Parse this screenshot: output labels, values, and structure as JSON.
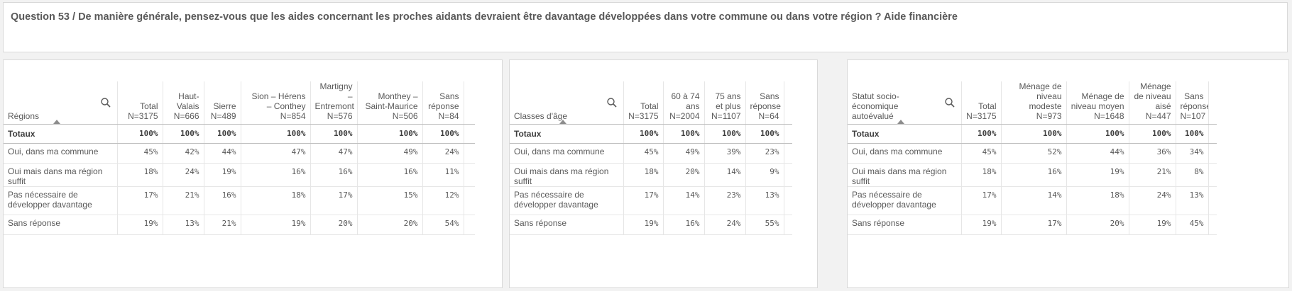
{
  "title": "Question 53 / De manière générale, pensez-vous que les aides concernant les proches aidants devraient être davantage développées dans votre commune ou dans votre région ? Aide financière",
  "rows": [
    "Totaux",
    "Oui, dans ma commune",
    "Oui mais dans ma région suffit",
    "Pas nécessaire de développer davantage",
    "Sans réponse"
  ],
  "tables": {
    "regions": {
      "dimension": "Régions",
      "columns": [
        {
          "name": "Total",
          "n": "N=3175"
        },
        {
          "name": "Haut-Valais",
          "n": "N=666"
        },
        {
          "name": "Sierre",
          "n": "N=489"
        },
        {
          "name": "Sion – Hérens – Conthey",
          "n": "N=854"
        },
        {
          "name": "Martigny – Entremont",
          "n": "N=576"
        },
        {
          "name": "Monthey – Saint-Maurice",
          "n": "N=506"
        },
        {
          "name": "Sans réponse",
          "n": "N=84"
        }
      ],
      "values": [
        [
          "100%",
          "100%",
          "100%",
          "100%",
          "100%",
          "100%",
          "100%"
        ],
        [
          "45%",
          "42%",
          "44%",
          "47%",
          "47%",
          "49%",
          "24%"
        ],
        [
          "18%",
          "24%",
          "19%",
          "16%",
          "16%",
          "16%",
          "11%"
        ],
        [
          "17%",
          "21%",
          "16%",
          "18%",
          "17%",
          "15%",
          "12%"
        ],
        [
          "19%",
          "13%",
          "21%",
          "19%",
          "20%",
          "20%",
          "54%"
        ]
      ]
    },
    "ages": {
      "dimension": "Classes d'âge",
      "columns": [
        {
          "name": "Total",
          "n": "N=3175"
        },
        {
          "name": "60 à 74 ans",
          "n": "N=2004"
        },
        {
          "name": "75 ans et plus",
          "n": "N=1107"
        },
        {
          "name": "Sans réponse",
          "n": "N=64"
        }
      ],
      "values": [
        [
          "100%",
          "100%",
          "100%",
          "100%"
        ],
        [
          "45%",
          "49%",
          "39%",
          "23%"
        ],
        [
          "18%",
          "20%",
          "14%",
          "9%"
        ],
        [
          "17%",
          "14%",
          "23%",
          "13%"
        ],
        [
          "19%",
          "16%",
          "24%",
          "55%"
        ]
      ]
    },
    "status": {
      "dimension": "Statut socio-économique autoévalué",
      "columns": [
        {
          "name": "Total",
          "n": "N=3175"
        },
        {
          "name": "Ménage de niveau modeste",
          "n": "N=973"
        },
        {
          "name": "Ménage de niveau moyen",
          "n": "N=1648"
        },
        {
          "name": "Ménage de niveau aisé",
          "n": "N=447"
        },
        {
          "name": "Sans réponse",
          "n": "N=107"
        }
      ],
      "values": [
        [
          "100%",
          "100%",
          "100%",
          "100%",
          "100%"
        ],
        [
          "45%",
          "52%",
          "44%",
          "36%",
          "34%"
        ],
        [
          "18%",
          "16%",
          "19%",
          "21%",
          "8%"
        ],
        [
          "17%",
          "14%",
          "18%",
          "24%",
          "13%"
        ],
        [
          "19%",
          "17%",
          "20%",
          "19%",
          "45%"
        ]
      ]
    }
  },
  "icons": {
    "search": "search-icon",
    "sort": "sort-ascending-icon"
  }
}
